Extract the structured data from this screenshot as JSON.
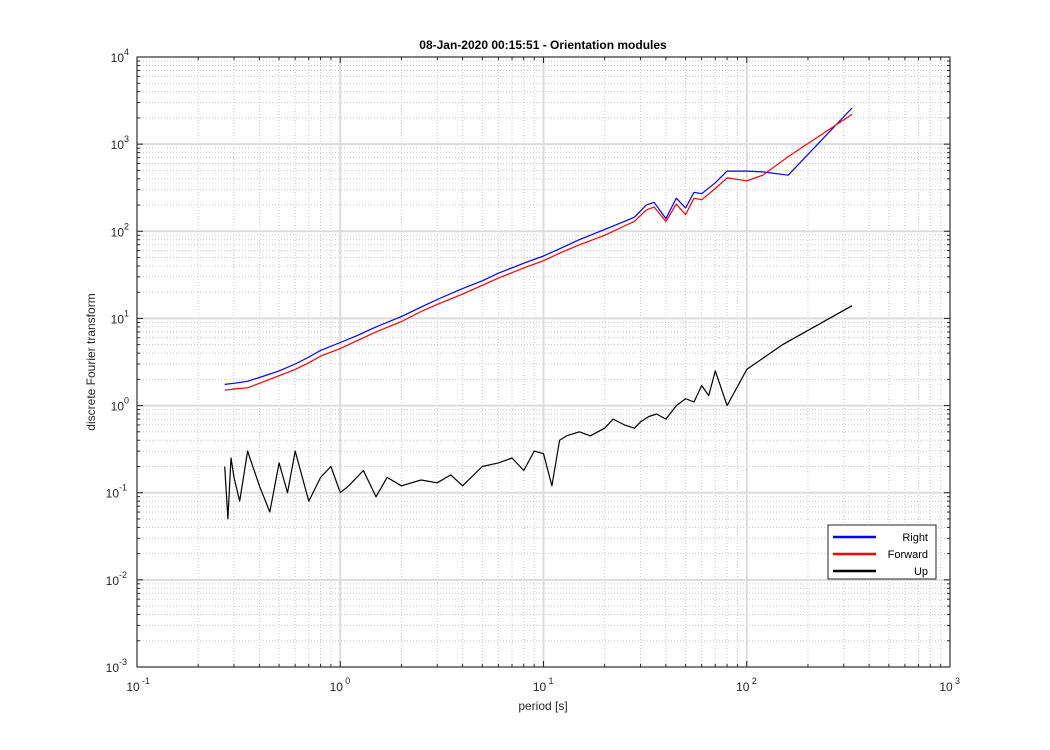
{
  "chart_data": {
    "type": "line",
    "title": "08-Jan-2020 00:15:51 - Orientation modules",
    "xlabel": "period [s]",
    "ylabel": "discrete Fourier transform",
    "xscale": "log",
    "yscale": "log",
    "xlim": [
      0.1,
      1000
    ],
    "ylim": [
      0.001,
      10000
    ],
    "grid": true,
    "minor_grid": true,
    "legend_position": "bottom-right",
    "x_tick_labels": [
      {
        "base": "10",
        "exp": "-1"
      },
      {
        "base": "10",
        "exp": "0"
      },
      {
        "base": "10",
        "exp": "1"
      },
      {
        "base": "10",
        "exp": "2"
      },
      {
        "base": "10",
        "exp": "3"
      }
    ],
    "y_tick_labels": [
      {
        "base": "10",
        "exp": "-3"
      },
      {
        "base": "10",
        "exp": "-2"
      },
      {
        "base": "10",
        "exp": "-1"
      },
      {
        "base": "10",
        "exp": "0"
      },
      {
        "base": "10",
        "exp": "1"
      },
      {
        "base": "10",
        "exp": "2"
      },
      {
        "base": "10",
        "exp": "3"
      },
      {
        "base": "10",
        "exp": "4"
      }
    ],
    "series": [
      {
        "name": "Right",
        "color": "#0000ff",
        "x": [
          0.27,
          0.3,
          0.35,
          0.4,
          0.5,
          0.6,
          0.7,
          0.8,
          1.0,
          1.2,
          1.5,
          2.0,
          2.5,
          3.0,
          4.0,
          5.0,
          6.0,
          8.0,
          10,
          12,
          15,
          20,
          25,
          28,
          32,
          35,
          40,
          45,
          50,
          55,
          60,
          70,
          80,
          100,
          120,
          160,
          330
        ],
        "y": [
          1.75,
          1.8,
          1.9,
          2.1,
          2.5,
          3.0,
          3.6,
          4.3,
          5.3,
          6.3,
          8.0,
          10.5,
          13.5,
          16.5,
          22,
          27,
          33,
          43,
          52,
          63,
          80,
          105,
          130,
          145,
          200,
          215,
          140,
          240,
          185,
          280,
          270,
          360,
          490,
          490,
          480,
          440,
          2600
        ]
      },
      {
        "name": "Forward",
        "color": "#ff0000",
        "x": [
          0.27,
          0.3,
          0.35,
          0.4,
          0.5,
          0.6,
          0.7,
          0.8,
          1.0,
          1.2,
          1.5,
          2.0,
          2.5,
          3.0,
          4.0,
          5.0,
          6.0,
          8.0,
          10,
          12,
          15,
          20,
          25,
          28,
          32,
          35,
          40,
          45,
          50,
          55,
          60,
          70,
          80,
          100,
          120,
          160,
          330
        ],
        "y": [
          1.5,
          1.55,
          1.6,
          1.8,
          2.2,
          2.6,
          3.1,
          3.7,
          4.5,
          5.5,
          7.0,
          9.2,
          12,
          14.5,
          19,
          24,
          29,
          38,
          46,
          56,
          70,
          90,
          115,
          130,
          175,
          190,
          130,
          205,
          155,
          240,
          230,
          310,
          410,
          380,
          440,
          720,
          2200
        ]
      },
      {
        "name": "Up",
        "color": "#000000",
        "x": [
          0.27,
          0.28,
          0.29,
          0.3,
          0.32,
          0.35,
          0.4,
          0.45,
          0.5,
          0.55,
          0.6,
          0.7,
          0.8,
          0.9,
          1.0,
          1.1,
          1.3,
          1.5,
          1.7,
          2.0,
          2.5,
          3.0,
          3.5,
          4.0,
          5.0,
          6.0,
          7.0,
          8.0,
          9.0,
          10,
          11,
          12,
          13,
          15,
          17,
          20,
          22,
          25,
          28,
          30,
          33,
          36,
          40,
          45,
          50,
          55,
          60,
          65,
          70,
          80,
          100,
          150,
          330
        ],
        "y": [
          0.2,
          0.05,
          0.25,
          0.15,
          0.08,
          0.3,
          0.12,
          0.06,
          0.22,
          0.1,
          0.3,
          0.08,
          0.15,
          0.2,
          0.1,
          0.12,
          0.18,
          0.09,
          0.15,
          0.12,
          0.14,
          0.13,
          0.16,
          0.12,
          0.2,
          0.22,
          0.25,
          0.18,
          0.3,
          0.28,
          0.12,
          0.4,
          0.45,
          0.5,
          0.45,
          0.55,
          0.7,
          0.6,
          0.55,
          0.65,
          0.75,
          0.8,
          0.7,
          1.0,
          1.2,
          1.1,
          1.7,
          1.3,
          2.5,
          1.0,
          2.6,
          5.0,
          14
        ]
      }
    ]
  }
}
